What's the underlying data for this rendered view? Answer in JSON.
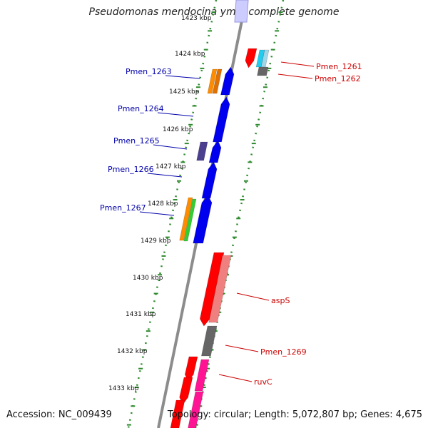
{
  "title": "Pseudomonas mendocina ymp, complete genome",
  "footer": {
    "accession": "Accession: NC_009439",
    "summary": "Topology: circular; Length: 5,072,807 bp; Genes: 4,675"
  },
  "ruler": {
    "top_partial_label": "1423 kbp",
    "ticks": [
      "1424 kbp",
      "1425 kbp",
      "1426 kbp",
      "1427 kbp",
      "1428 kbp",
      "1429 kbp",
      "1430 kbp",
      "1431 kbp",
      "1432 kbp",
      "1433 kbp"
    ]
  },
  "colors": {
    "backbone": "#8c8c8c",
    "dotted_guide": "#2e8b2e",
    "left_label": "#0000aa",
    "right_label": "#cc0000",
    "blue": "#0000ee",
    "red": "#ff0000",
    "salmon": "#f08080",
    "orange": "#ff8c00",
    "green": "#33cc33",
    "purple": "#4b3f8f",
    "gray": "#666666",
    "cyan": "#22ccee",
    "pink": "#ff1493"
  },
  "left_labels": [
    "Pmen_1263",
    "Pmen_1264",
    "Pmen_1265",
    "Pmen_1266",
    "Pmen_1267"
  ],
  "right_labels": [
    "Pmen_1261",
    "Pmen_1262",
    "aspS",
    "Pmen_1269",
    "ruvC"
  ]
}
